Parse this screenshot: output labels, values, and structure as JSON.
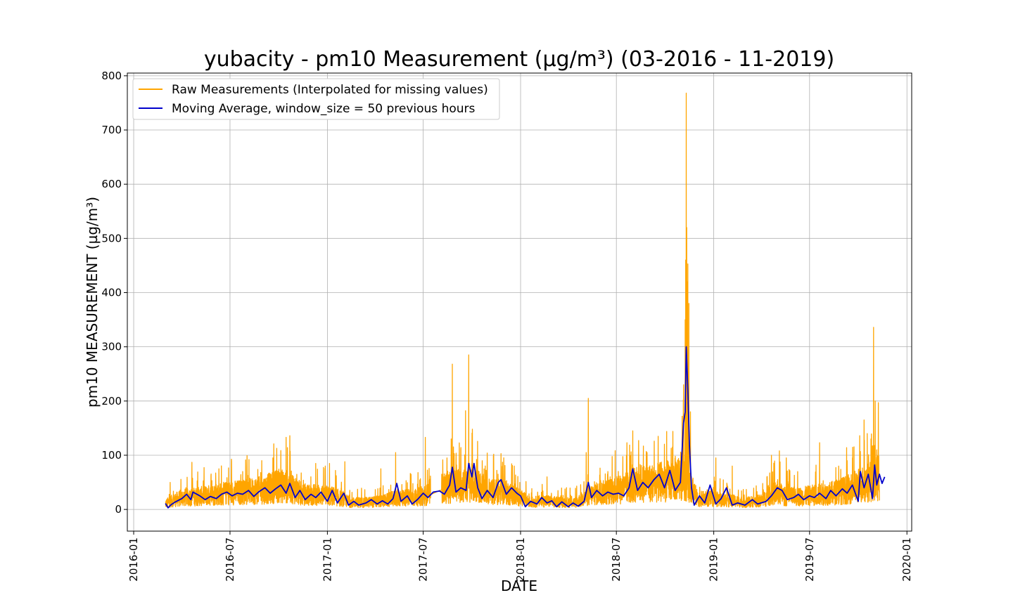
{
  "chart_data": {
    "type": "line",
    "title": "yubacity - pm10 Measurement (µg/m³) (03-2016 - 11-2019)",
    "xlabel": "DATE",
    "ylabel": "pm10 MEASUREMENT (µg/m³)",
    "xlim": [
      "2015-12-20",
      "2020-01-10"
    ],
    "ylim": [
      -40,
      805
    ],
    "grid": true,
    "legend_position": "top-left",
    "x_ticks": [
      "2016-01",
      "2016-07",
      "2017-01",
      "2017-07",
      "2018-01",
      "2018-07",
      "2019-01",
      "2019-07",
      "2020-01"
    ],
    "y_ticks": [
      0,
      100,
      200,
      300,
      400,
      500,
      600,
      700,
      800
    ],
    "series": [
      {
        "name": "Raw Measurements (Interpolated for missing values)",
        "color": "#FFA500",
        "baseline": [
          [
            "2016-03-01",
            10
          ],
          [
            "2016-03-15",
            15
          ],
          [
            "2016-04-01",
            20
          ],
          [
            "2016-05-01",
            22
          ],
          [
            "2016-06-01",
            25
          ],
          [
            "2016-07-01",
            28
          ],
          [
            "2016-08-01",
            30
          ],
          [
            "2016-09-01",
            33
          ],
          [
            "2016-10-01",
            40
          ],
          [
            "2016-10-25",
            38
          ],
          [
            "2016-11-15",
            25
          ],
          [
            "2016-12-15",
            25
          ],
          [
            "2017-01-15",
            22
          ],
          [
            "2017-02-15",
            12
          ],
          [
            "2017-03-15",
            12
          ],
          [
            "2017-04-15",
            14
          ],
          [
            "2017-05-15",
            20
          ],
          [
            "2017-06-15",
            20
          ],
          [
            "2017-07-10",
            25
          ],
          [
            "2017-08-01",
            35
          ],
          [
            "2017-09-01",
            40
          ],
          [
            "2017-10-01",
            45
          ],
          [
            "2017-11-01",
            30
          ],
          [
            "2017-12-01",
            30
          ],
          [
            "2018-01-01",
            20
          ],
          [
            "2018-01-20",
            12
          ],
          [
            "2018-02-15",
            15
          ],
          [
            "2018-03-15",
            12
          ],
          [
            "2018-04-15",
            12
          ],
          [
            "2018-05-15",
            25
          ],
          [
            "2018-06-15",
            30
          ],
          [
            "2018-07-15",
            35
          ],
          [
            "2018-08-15",
            45
          ],
          [
            "2018-09-15",
            45
          ],
          [
            "2018-10-15",
            50
          ],
          [
            "2018-11-05",
            60
          ],
          [
            "2018-11-20",
            40
          ],
          [
            "2018-12-01",
            18
          ],
          [
            "2019-01-01",
            18
          ],
          [
            "2019-02-01",
            15
          ],
          [
            "2019-03-01",
            12
          ],
          [
            "2019-04-01",
            15
          ],
          [
            "2019-05-01",
            30
          ],
          [
            "2019-05-15",
            22
          ],
          [
            "2019-06-15",
            22
          ],
          [
            "2019-07-15",
            25
          ],
          [
            "2019-08-15",
            28
          ],
          [
            "2019-09-15",
            35
          ],
          [
            "2019-10-15",
            45
          ],
          [
            "2019-11-10",
            55
          ]
        ],
        "spikes": [
          [
            "2016-03-10",
            50
          ],
          [
            "2016-04-20",
            87
          ],
          [
            "2016-06-10",
            75
          ],
          [
            "2016-07-25",
            70
          ],
          [
            "2016-08-30",
            90
          ],
          [
            "2016-09-20",
            95
          ],
          [
            "2016-10-15",
            133
          ],
          [
            "2016-10-22",
            136
          ],
          [
            "2016-12-10",
            85
          ],
          [
            "2016-12-28",
            80
          ],
          [
            "2017-01-05",
            85
          ],
          [
            "2017-02-03",
            88
          ],
          [
            "2017-04-12",
            75
          ],
          [
            "2017-05-10",
            105
          ],
          [
            "2017-06-08",
            65
          ],
          [
            "2017-07-05",
            133
          ],
          [
            "2017-08-15",
            95
          ],
          [
            "2017-08-23",
            130
          ],
          [
            "2017-08-25",
            268
          ],
          [
            "2017-09-10",
            110
          ],
          [
            "2017-09-19",
            182
          ],
          [
            "2017-09-25",
            285
          ],
          [
            "2017-10-02",
            148
          ],
          [
            "2017-11-25",
            103
          ],
          [
            "2017-12-20",
            80
          ],
          [
            "2018-02-20",
            60
          ],
          [
            "2018-05-05",
            105
          ],
          [
            "2018-05-09",
            205
          ],
          [
            "2018-06-15",
            70
          ],
          [
            "2018-07-20",
            100
          ],
          [
            "2018-08-01",
            145
          ],
          [
            "2018-08-28",
            105
          ],
          [
            "2018-09-18",
            135
          ],
          [
            "2018-10-15",
            115
          ],
          [
            "2018-11-05",
            230
          ],
          [
            "2018-11-08",
            350
          ],
          [
            "2018-11-09",
            460
          ],
          [
            "2018-11-10",
            768
          ],
          [
            "2018-11-11",
            520
          ],
          [
            "2018-11-12",
            420
          ],
          [
            "2018-11-13",
            453
          ],
          [
            "2018-11-15",
            380
          ],
          [
            "2018-11-18",
            180
          ],
          [
            "2019-01-05",
            95
          ],
          [
            "2019-02-05",
            80
          ],
          [
            "2019-04-20",
            100
          ],
          [
            "2019-05-05",
            108
          ],
          [
            "2019-05-18",
            95
          ],
          [
            "2019-07-20",
            123
          ],
          [
            "2019-08-25",
            80
          ],
          [
            "2019-09-10",
            90
          ],
          [
            "2019-09-20",
            95
          ],
          [
            "2019-10-05",
            107
          ],
          [
            "2019-10-12",
            165
          ],
          [
            "2019-10-18",
            140
          ],
          [
            "2019-10-25",
            130
          ],
          [
            "2019-10-30",
            336
          ],
          [
            "2019-11-02",
            200
          ],
          [
            "2019-11-05",
            110
          ],
          [
            "2019-11-08",
            197
          ],
          [
            "2019-11-15",
            125
          ]
        ]
      },
      {
        "name": "Moving Average, window_size = 50 previous hours",
        "color": "#0000CC",
        "points": [
          [
            "2016-03-01",
            11
          ],
          [
            "2016-03-06",
            3
          ],
          [
            "2016-03-12",
            9
          ],
          [
            "2016-03-20",
            14
          ],
          [
            "2016-04-01",
            20
          ],
          [
            "2016-04-10",
            28
          ],
          [
            "2016-04-18",
            18
          ],
          [
            "2016-04-22",
            32
          ],
          [
            "2016-05-05",
            25
          ],
          [
            "2016-05-15",
            18
          ],
          [
            "2016-05-25",
            24
          ],
          [
            "2016-06-05",
            20
          ],
          [
            "2016-06-15",
            28
          ],
          [
            "2016-06-25",
            32
          ],
          [
            "2016-07-05",
            25
          ],
          [
            "2016-07-15",
            30
          ],
          [
            "2016-07-25",
            28
          ],
          [
            "2016-08-05",
            35
          ],
          [
            "2016-08-15",
            24
          ],
          [
            "2016-08-25",
            33
          ],
          [
            "2016-09-05",
            40
          ],
          [
            "2016-09-15",
            30
          ],
          [
            "2016-09-25",
            38
          ],
          [
            "2016-10-05",
            45
          ],
          [
            "2016-10-15",
            30
          ],
          [
            "2016-10-22",
            48
          ],
          [
            "2016-11-01",
            22
          ],
          [
            "2016-11-10",
            35
          ],
          [
            "2016-11-20",
            18
          ],
          [
            "2016-12-01",
            28
          ],
          [
            "2016-12-10",
            22
          ],
          [
            "2016-12-20",
            32
          ],
          [
            "2017-01-01",
            15
          ],
          [
            "2017-01-10",
            35
          ],
          [
            "2017-01-20",
            12
          ],
          [
            "2017-02-01",
            30
          ],
          [
            "2017-02-10",
            8
          ],
          [
            "2017-02-20",
            15
          ],
          [
            "2017-03-01",
            8
          ],
          [
            "2017-03-15",
            12
          ],
          [
            "2017-03-25",
            18
          ],
          [
            "2017-04-05",
            10
          ],
          [
            "2017-04-15",
            16
          ],
          [
            "2017-04-25",
            10
          ],
          [
            "2017-05-05",
            20
          ],
          [
            "2017-05-12",
            48
          ],
          [
            "2017-05-20",
            15
          ],
          [
            "2017-06-01",
            25
          ],
          [
            "2017-06-10",
            10
          ],
          [
            "2017-06-20",
            18
          ],
          [
            "2017-07-01",
            30
          ],
          [
            "2017-07-10",
            22
          ],
          [
            "2017-07-20",
            32
          ],
          [
            "2017-08-01",
            34
          ],
          [
            "2017-08-10",
            28
          ],
          [
            "2017-08-20",
            45
          ],
          [
            "2017-08-25",
            78
          ],
          [
            "2017-09-01",
            32
          ],
          [
            "2017-09-10",
            40
          ],
          [
            "2017-09-20",
            35
          ],
          [
            "2017-09-25",
            85
          ],
          [
            "2017-10-01",
            60
          ],
          [
            "2017-10-05",
            85
          ],
          [
            "2017-10-12",
            40
          ],
          [
            "2017-10-20",
            20
          ],
          [
            "2017-10-30",
            35
          ],
          [
            "2017-11-10",
            22
          ],
          [
            "2017-11-20",
            50
          ],
          [
            "2017-11-25",
            55
          ],
          [
            "2017-12-05",
            28
          ],
          [
            "2017-12-15",
            40
          ],
          [
            "2017-12-25",
            30
          ],
          [
            "2018-01-01",
            25
          ],
          [
            "2018-01-10",
            5
          ],
          [
            "2018-01-20",
            15
          ],
          [
            "2018-02-01",
            10
          ],
          [
            "2018-02-10",
            22
          ],
          [
            "2018-02-20",
            12
          ],
          [
            "2018-03-01",
            16
          ],
          [
            "2018-03-10",
            5
          ],
          [
            "2018-03-20",
            14
          ],
          [
            "2018-04-01",
            5
          ],
          [
            "2018-04-10",
            12
          ],
          [
            "2018-04-20",
            6
          ],
          [
            "2018-05-01",
            15
          ],
          [
            "2018-05-09",
            50
          ],
          [
            "2018-05-15",
            22
          ],
          [
            "2018-05-25",
            35
          ],
          [
            "2018-06-05",
            25
          ],
          [
            "2018-06-15",
            32
          ],
          [
            "2018-06-25",
            28
          ],
          [
            "2018-07-05",
            30
          ],
          [
            "2018-07-15",
            25
          ],
          [
            "2018-07-25",
            40
          ],
          [
            "2018-08-01",
            75
          ],
          [
            "2018-08-10",
            35
          ],
          [
            "2018-08-20",
            50
          ],
          [
            "2018-08-30",
            40
          ],
          [
            "2018-09-10",
            55
          ],
          [
            "2018-09-20",
            65
          ],
          [
            "2018-09-30",
            40
          ],
          [
            "2018-10-10",
            72
          ],
          [
            "2018-10-20",
            35
          ],
          [
            "2018-10-30",
            50
          ],
          [
            "2018-11-05",
            160
          ],
          [
            "2018-11-08",
            180
          ],
          [
            "2018-11-10",
            300
          ],
          [
            "2018-11-13",
            220
          ],
          [
            "2018-11-16",
            120
          ],
          [
            "2018-11-20",
            40
          ],
          [
            "2018-11-25",
            8
          ],
          [
            "2018-12-05",
            25
          ],
          [
            "2018-12-15",
            12
          ],
          [
            "2018-12-25",
            45
          ],
          [
            "2019-01-05",
            10
          ],
          [
            "2019-01-15",
            20
          ],
          [
            "2019-01-25",
            40
          ],
          [
            "2019-02-05",
            8
          ],
          [
            "2019-02-15",
            12
          ],
          [
            "2019-03-01",
            8
          ],
          [
            "2019-03-15",
            18
          ],
          [
            "2019-03-25",
            10
          ],
          [
            "2019-04-10",
            15
          ],
          [
            "2019-04-20",
            25
          ],
          [
            "2019-05-01",
            40
          ],
          [
            "2019-05-10",
            35
          ],
          [
            "2019-05-20",
            18
          ],
          [
            "2019-06-01",
            22
          ],
          [
            "2019-06-10",
            28
          ],
          [
            "2019-06-20",
            18
          ],
          [
            "2019-07-01",
            25
          ],
          [
            "2019-07-10",
            22
          ],
          [
            "2019-07-20",
            30
          ],
          [
            "2019-08-01",
            20
          ],
          [
            "2019-08-10",
            35
          ],
          [
            "2019-08-20",
            25
          ],
          [
            "2019-09-01",
            38
          ],
          [
            "2019-09-10",
            30
          ],
          [
            "2019-09-20",
            45
          ],
          [
            "2019-10-01",
            15
          ],
          [
            "2019-10-05",
            70
          ],
          [
            "2019-10-12",
            40
          ],
          [
            "2019-10-20",
            65
          ],
          [
            "2019-10-28",
            20
          ],
          [
            "2019-11-01",
            82
          ],
          [
            "2019-11-05",
            45
          ],
          [
            "2019-11-10",
            65
          ],
          [
            "2019-11-15",
            48
          ],
          [
            "2019-11-20",
            60
          ]
        ]
      }
    ]
  }
}
